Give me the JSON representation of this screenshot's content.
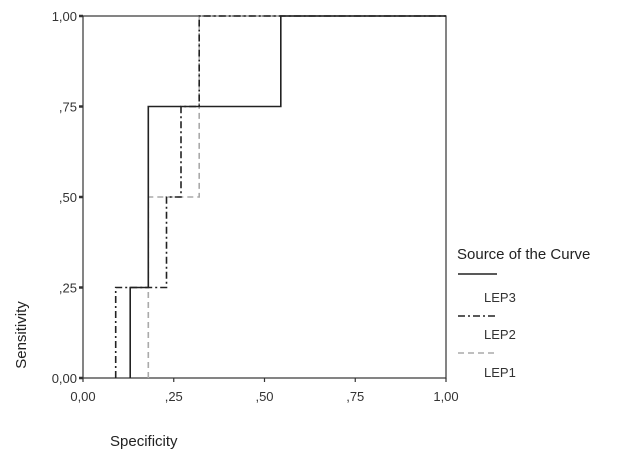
{
  "chart_data": {
    "type": "line",
    "title": "",
    "xlabel": "Specificity",
    "ylabel": "Sensitivity",
    "xlim": [
      0,
      1
    ],
    "ylim": [
      0,
      1
    ],
    "x_ticks": [
      "0,00",
      ",25",
      ",50",
      ",75",
      "1,00"
    ],
    "y_ticks": [
      "0,00",
      ",25",
      ",50",
      ",75",
      "1,00"
    ],
    "grid": false,
    "legend": {
      "title": "Source of the Curve",
      "position": "right"
    },
    "series": [
      {
        "name": "LEP3",
        "color": "#222222",
        "style": "solid",
        "x": [
          0.13,
          0.13,
          0.18,
          0.18,
          0.545,
          0.545,
          1.0
        ],
        "y": [
          0.0,
          0.25,
          0.25,
          0.75,
          0.75,
          1.0,
          1.0
        ]
      },
      {
        "name": "LEP2",
        "color": "#222222",
        "style": "dashdot",
        "x": [
          0.09,
          0.09,
          0.23,
          0.23,
          0.27,
          0.27,
          0.32,
          0.32,
          1.0
        ],
        "y": [
          0.0,
          0.25,
          0.25,
          0.5,
          0.5,
          0.75,
          0.75,
          1.0,
          1.0
        ]
      },
      {
        "name": "LEP1",
        "color": "#aaaaaa",
        "style": "dashed",
        "x": [
          0.18,
          0.18,
          0.32,
          0.32,
          1.0
        ],
        "y": [
          0.0,
          0.5,
          0.5,
          1.0,
          1.0
        ]
      }
    ]
  }
}
